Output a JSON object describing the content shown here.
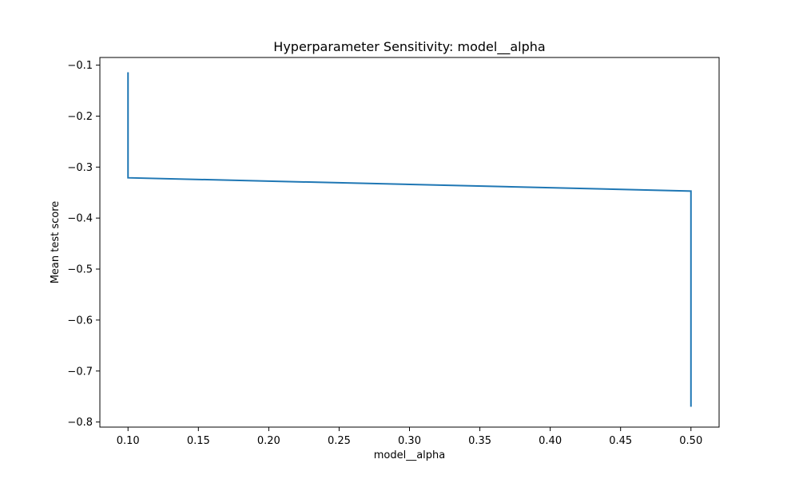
{
  "chart_data": {
    "type": "line",
    "title": "Hyperparameter Sensitivity: model__alpha",
    "xlabel": "model__alpha",
    "ylabel": "Mean test score",
    "xlim": [
      0.08,
      0.52
    ],
    "ylim": [
      -0.81,
      -0.085
    ],
    "xticks": [
      0.1,
      0.15,
      0.2,
      0.25,
      0.3,
      0.35,
      0.4,
      0.45,
      0.5
    ],
    "xtick_labels": [
      "0.10",
      "0.15",
      "0.20",
      "0.25",
      "0.30",
      "0.35",
      "0.40",
      "0.45",
      "0.50"
    ],
    "yticks": [
      -0.1,
      -0.2,
      -0.3,
      -0.4,
      -0.5,
      -0.6,
      -0.7,
      -0.8
    ],
    "ytick_labels": [
      "−0.1",
      "−0.2",
      "−0.3",
      "−0.4",
      "−0.5",
      "−0.6",
      "−0.7",
      "−0.8"
    ],
    "grid": false,
    "legend": false,
    "series": [
      {
        "color": "#1f77b4",
        "points": [
          {
            "x": 0.1,
            "y": -0.114
          },
          {
            "x": 0.1,
            "y": -0.321
          },
          {
            "x": 0.5,
            "y": -0.347
          },
          {
            "x": 0.5,
            "y": -0.77
          }
        ]
      }
    ]
  }
}
